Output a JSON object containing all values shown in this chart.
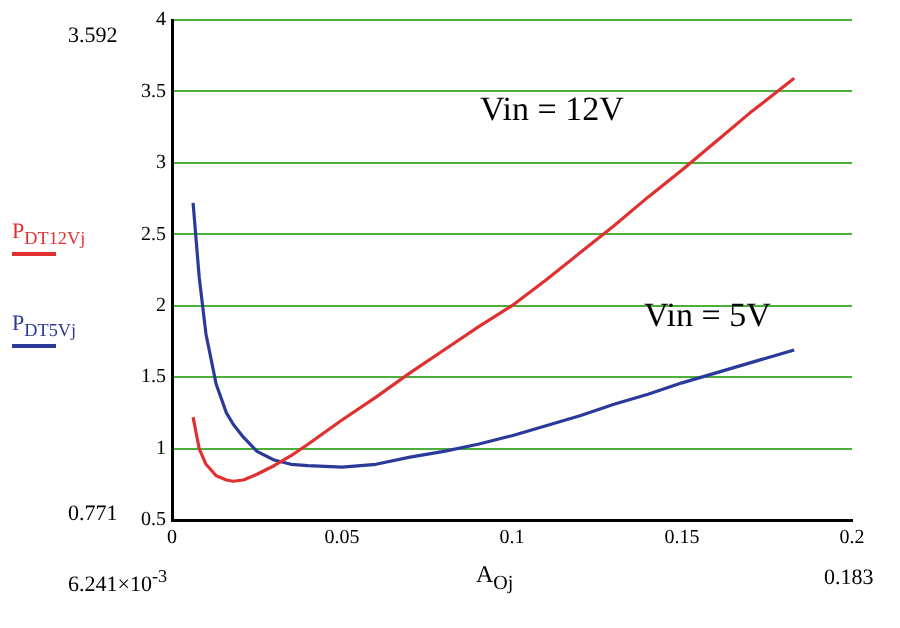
{
  "chart_data": {
    "type": "line",
    "xlabel": "A$_{O}$$_{j}$",
    "x": [
      0.0062,
      0.008,
      0.01,
      0.013,
      0.016,
      0.018,
      0.021,
      0.025,
      0.03,
      0.035,
      0.04,
      0.05,
      0.06,
      0.07,
      0.08,
      0.09,
      0.1,
      0.11,
      0.12,
      0.13,
      0.14,
      0.15,
      0.16,
      0.17,
      0.183
    ],
    "series": [
      {
        "name": "P$_{DT12V}$$_{j}$",
        "color": "#e03030",
        "values": [
          1.22,
          1.0,
          0.89,
          0.81,
          0.78,
          0.771,
          0.78,
          0.82,
          0.88,
          0.95,
          1.03,
          1.2,
          1.36,
          1.53,
          1.69,
          1.85,
          2.0,
          2.18,
          2.37,
          2.56,
          2.76,
          2.95,
          3.15,
          3.35,
          3.592
        ]
      },
      {
        "name": "P$_{DT5V}$$_{j}$",
        "color": "#2b3a9a",
        "values": [
          2.72,
          2.2,
          1.8,
          1.45,
          1.25,
          1.17,
          1.08,
          0.98,
          0.92,
          0.89,
          0.88,
          0.87,
          0.89,
          0.94,
          0.98,
          1.03,
          1.09,
          1.16,
          1.23,
          1.31,
          1.38,
          1.46,
          1.53,
          1.6,
          1.69
        ]
      }
    ],
    "xlim": [
      0,
      0.2
    ],
    "xticks": [
      0,
      0.05,
      0.1,
      0.15,
      0.2
    ],
    "ylim": [
      0.5,
      4
    ],
    "yticks": [
      0.5,
      1,
      1.5,
      2,
      2.5,
      3,
      3.5,
      4
    ],
    "grid": "y",
    "legend": "left",
    "marker": "none",
    "line_style": "solid",
    "annotations": [
      "Vin = 12V",
      "Vin = 5V",
      "3.592",
      "0.771",
      "6.241×10$^{-3}$",
      "0.183"
    ]
  }
}
